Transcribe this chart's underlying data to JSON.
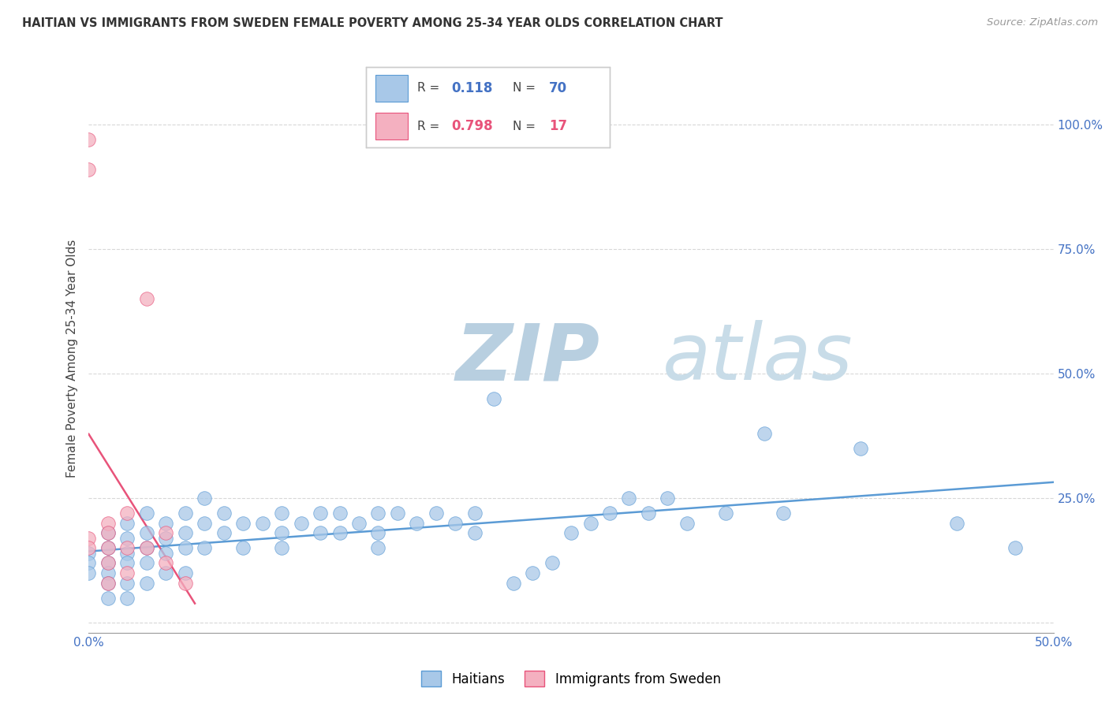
{
  "title": "HAITIAN VS IMMIGRANTS FROM SWEDEN FEMALE POVERTY AMONG 25-34 YEAR OLDS CORRELATION CHART",
  "source": "Source: ZipAtlas.com",
  "ylabel": "Female Poverty Among 25-34 Year Olds",
  "xlim": [
    0.0,
    0.5
  ],
  "ylim": [
    -0.02,
    1.08
  ],
  "color_blue": "#a8c8e8",
  "color_pink": "#f4b0c0",
  "color_blue_line": "#5b9bd5",
  "color_pink_line": "#e8537a",
  "color_blue_text": "#4472c4",
  "color_pink_text": "#e84c7d",
  "watermark": "ZIPatlas",
  "watermark_color": "#ccdaec",
  "background_color": "#ffffff",
  "grid_color": "#d8d8d8",
  "haitians_x": [
    0.0,
    0.0,
    0.0,
    0.01,
    0.01,
    0.01,
    0.01,
    0.01,
    0.01,
    0.02,
    0.02,
    0.02,
    0.02,
    0.02,
    0.02,
    0.03,
    0.03,
    0.03,
    0.03,
    0.03,
    0.04,
    0.04,
    0.04,
    0.04,
    0.05,
    0.05,
    0.05,
    0.05,
    0.06,
    0.06,
    0.06,
    0.07,
    0.07,
    0.08,
    0.08,
    0.09,
    0.1,
    0.1,
    0.1,
    0.11,
    0.12,
    0.12,
    0.13,
    0.13,
    0.14,
    0.15,
    0.15,
    0.15,
    0.16,
    0.17,
    0.18,
    0.19,
    0.2,
    0.2,
    0.21,
    0.22,
    0.23,
    0.24,
    0.25,
    0.26,
    0.27,
    0.28,
    0.29,
    0.3,
    0.31,
    0.33,
    0.35,
    0.36,
    0.4,
    0.45,
    0.48
  ],
  "haitians_y": [
    0.14,
    0.12,
    0.1,
    0.18,
    0.15,
    0.12,
    0.1,
    0.08,
    0.05,
    0.2,
    0.17,
    0.14,
    0.12,
    0.08,
    0.05,
    0.22,
    0.18,
    0.15,
    0.12,
    0.08,
    0.2,
    0.17,
    0.14,
    0.1,
    0.22,
    0.18,
    0.15,
    0.1,
    0.25,
    0.2,
    0.15,
    0.22,
    0.18,
    0.2,
    0.15,
    0.2,
    0.22,
    0.18,
    0.15,
    0.2,
    0.22,
    0.18,
    0.22,
    0.18,
    0.2,
    0.22,
    0.18,
    0.15,
    0.22,
    0.2,
    0.22,
    0.2,
    0.22,
    0.18,
    0.45,
    0.08,
    0.1,
    0.12,
    0.18,
    0.2,
    0.22,
    0.25,
    0.22,
    0.25,
    0.2,
    0.22,
    0.38,
    0.22,
    0.35,
    0.2,
    0.15
  ],
  "sweden_x": [
    0.0,
    0.0,
    0.0,
    0.0,
    0.01,
    0.01,
    0.01,
    0.01,
    0.01,
    0.02,
    0.02,
    0.02,
    0.03,
    0.03,
    0.04,
    0.04,
    0.05
  ],
  "sweden_y": [
    0.97,
    0.91,
    0.17,
    0.15,
    0.2,
    0.18,
    0.15,
    0.12,
    0.08,
    0.22,
    0.15,
    0.1,
    0.65,
    0.15,
    0.18,
    0.12,
    0.08
  ]
}
